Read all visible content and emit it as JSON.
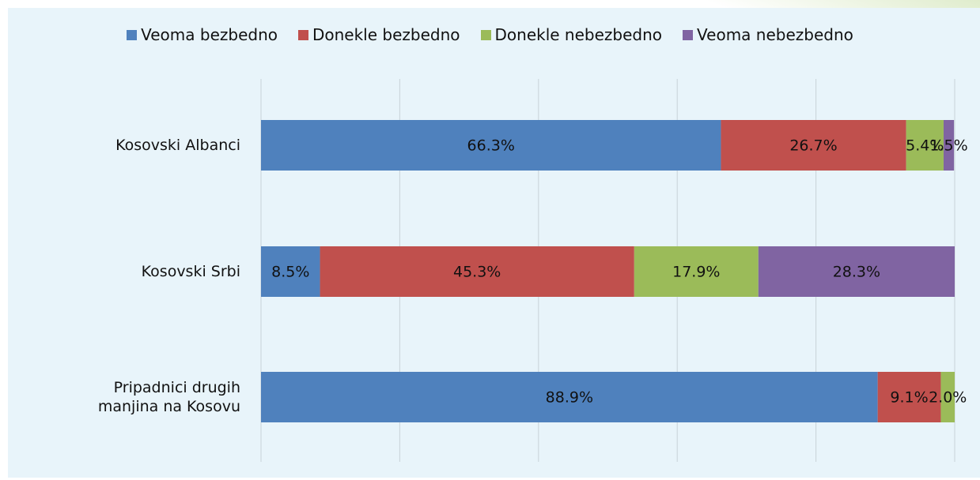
{
  "chart_data": {
    "type": "stacked_bar_horizontal",
    "categories": [
      "Kosovski Albanci",
      "Kosovski Srbi",
      "Pripadnici drugih manjina na Kosovu"
    ],
    "series": [
      {
        "name": "Veoma bezbedno",
        "color": "#4f81bd",
        "values": [
          66.3,
          8.5,
          88.9
        ],
        "value_labels": [
          "66.3%",
          "8.5%",
          "88.9%"
        ]
      },
      {
        "name": "Donekle bezbedno",
        "color": "#c0504d",
        "values": [
          26.7,
          45.3,
          9.1
        ],
        "value_labels": [
          "26.7%",
          "45.3%",
          "9.1%"
        ]
      },
      {
        "name": "Donekle nebezbedno",
        "color": "#9bbb59",
        "values": [
          5.4,
          17.9,
          2.0
        ],
        "value_labels": [
          "5.4%",
          "17.9%",
          "2.0%"
        ]
      },
      {
        "name": "Veoma nebezbedno",
        "color": "#8064a2",
        "values": [
          1.5,
          28.3,
          null
        ],
        "value_labels": [
          "1.5%",
          "28.3%",
          null
        ]
      }
    ],
    "xlim": [
      0,
      100
    ],
    "xticks": [
      0,
      20,
      40,
      60,
      80,
      100
    ],
    "grid": true,
    "legend": "top"
  }
}
